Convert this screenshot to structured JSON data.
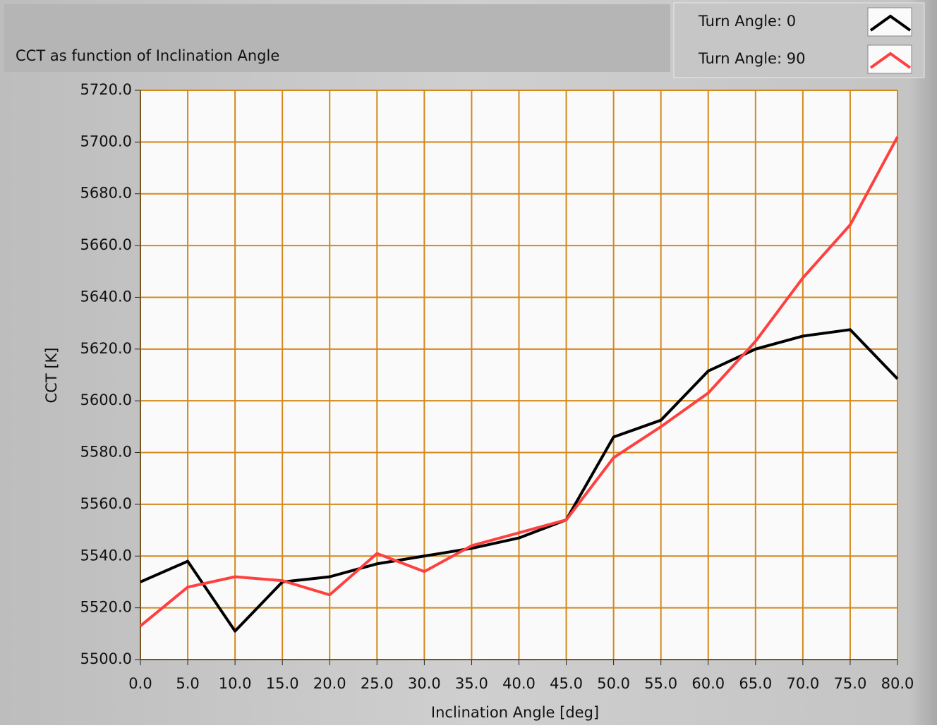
{
  "chart_data": {
    "type": "line",
    "title": "CCT as function of Inclination Angle",
    "xlabel": "Inclination Angle [deg]",
    "ylabel": "CCT [K]",
    "x": [
      0,
      5,
      10,
      15,
      20,
      25,
      30,
      35,
      40,
      45,
      50,
      55,
      60,
      65,
      70,
      75,
      80
    ],
    "series": [
      {
        "name": "Turn Angle: 0",
        "color": "#000000",
        "values": [
          5530,
          5538,
          5511,
          5530,
          5532,
          5537,
          5540,
          5543,
          5547,
          5554,
          5586,
          5592.5,
          5611.5,
          5620,
          5625,
          5627.5,
          5608.5
        ]
      },
      {
        "name": "Turn Angle: 90",
        "color": "#ff4040",
        "values": [
          5513,
          5528,
          5532,
          5530.5,
          5525,
          5541,
          5534,
          5544,
          5549,
          5554,
          5578,
          5590,
          5603,
          5623,
          5647.5,
          5668,
          5702
        ]
      }
    ],
    "xlim": [
      0,
      80
    ],
    "xticks": [
      {
        "value": 0,
        "label": "0.0"
      },
      {
        "value": 5,
        "label": "5.0"
      },
      {
        "value": 10,
        "label": "10.0"
      },
      {
        "value": 15,
        "label": "15.0"
      },
      {
        "value": 20,
        "label": "20.0"
      },
      {
        "value": 25,
        "label": "25.0"
      },
      {
        "value": 30,
        "label": "30.0"
      },
      {
        "value": 35,
        "label": "35.0"
      },
      {
        "value": 40,
        "label": "40.0"
      },
      {
        "value": 45,
        "label": "45.0"
      },
      {
        "value": 50,
        "label": "50.0"
      },
      {
        "value": 55,
        "label": "55.0"
      },
      {
        "value": 60,
        "label": "60.0"
      },
      {
        "value": 65,
        "label": "65.0"
      },
      {
        "value": 70,
        "label": "70.0"
      },
      {
        "value": 75,
        "label": "75.0"
      },
      {
        "value": 80,
        "label": "80.0"
      }
    ],
    "ylim": [
      5500,
      5720
    ],
    "yticks": [
      {
        "value": 5500,
        "label": "5500.0"
      },
      {
        "value": 5520,
        "label": "5520.0"
      },
      {
        "value": 5540,
        "label": "5540.0"
      },
      {
        "value": 5560,
        "label": "5560.0"
      },
      {
        "value": 5580,
        "label": "5580.0"
      },
      {
        "value": 5600,
        "label": "5600.0"
      },
      {
        "value": 5620,
        "label": "5620.0"
      },
      {
        "value": 5640,
        "label": "5640.0"
      },
      {
        "value": 5660,
        "label": "5660.0"
      },
      {
        "value": 5680,
        "label": "5680.0"
      },
      {
        "value": 5700,
        "label": "5700.0"
      },
      {
        "value": 5720,
        "label": "5720.0"
      }
    ],
    "grid": true,
    "grid_color": "#d4881c",
    "legend": "top-right"
  }
}
